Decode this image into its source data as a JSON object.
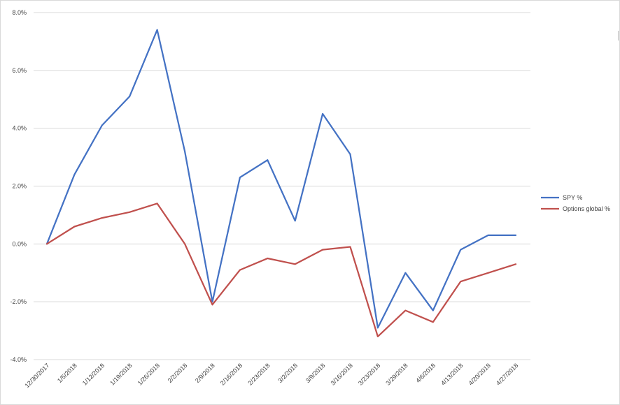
{
  "chart_data": {
    "type": "line",
    "title": "",
    "xlabel": "",
    "ylabel": "",
    "categories": [
      "12/30/2017",
      "1/5/2018",
      "1/12/2018",
      "1/19/2018",
      "1/26/2018",
      "2/2/2018",
      "2/9/2018",
      "2/16/2018",
      "2/23/2018",
      "3/2/2018",
      "3/9/2018",
      "3/16/2018",
      "3/23/2018",
      "3/29/2018",
      "4/6/2018",
      "4/13/2018",
      "4/20/2018",
      "4/27/2018"
    ],
    "series": [
      {
        "name": "SPY %",
        "color": "#4472c4",
        "values": [
          0.0,
          2.4,
          4.1,
          5.1,
          7.4,
          3.2,
          -2.0,
          2.3,
          2.9,
          0.8,
          4.5,
          3.1,
          -2.9,
          -1.0,
          -2.3,
          -0.2,
          0.3,
          0.3
        ]
      },
      {
        "name": "Options global %",
        "color": "#c0504d",
        "values": [
          0.0,
          0.6,
          0.9,
          1.1,
          1.4,
          0.0,
          -2.1,
          -0.9,
          -0.5,
          -0.7,
          -0.2,
          -0.1,
          -3.2,
          -2.3,
          -2.7,
          -1.3,
          -1.0,
          -0.7
        ]
      }
    ],
    "ylim": [
      -4.0,
      8.0
    ],
    "yticks": [
      -4.0,
      -2.0,
      0.0,
      2.0,
      4.0,
      6.0,
      8.0
    ],
    "ytick_labels": [
      "-4.0%",
      "-2.0%",
      "0.0%",
      "2.0%",
      "4.0%",
      "6.0%",
      "8.0%"
    ],
    "grid": true,
    "legend_position": "right"
  }
}
